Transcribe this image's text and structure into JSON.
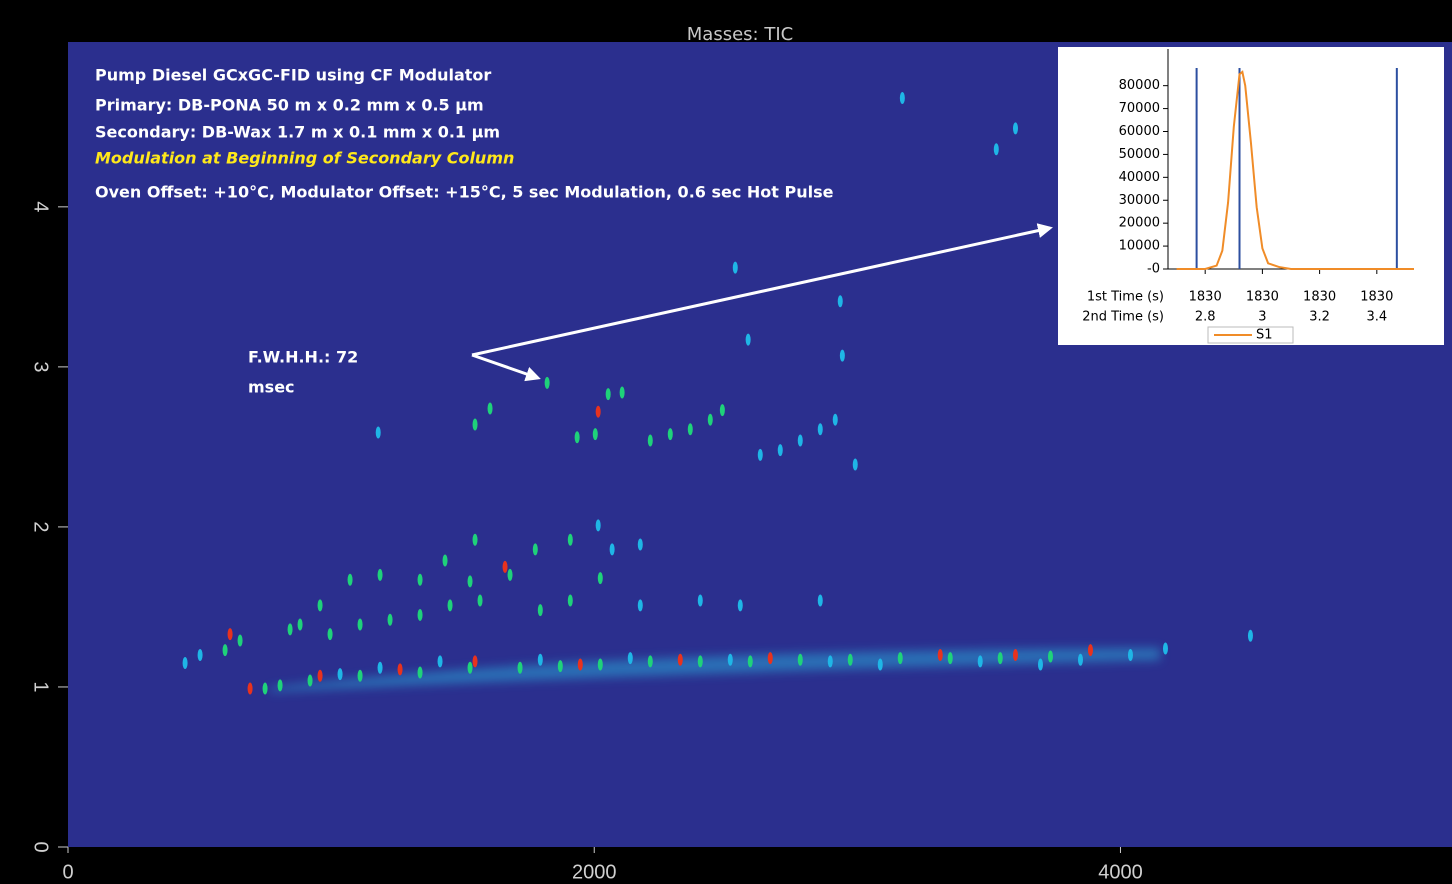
{
  "chart_data": [
    {
      "type": "scatter",
      "title": "Masses: TIC",
      "annotations": [
        {
          "text": "Pump Diesel GCxGC-FID using CF Modulator",
          "color": "#ffffff"
        },
        {
          "text": "Primary: DB-PONA 50 m x 0.2 mm x 0.5 μm",
          "color": "#ffffff"
        },
        {
          "text": "Secondary: DB-Wax 1.7 m x 0.1 mm x 0.1 μm",
          "color": "#ffffff"
        },
        {
          "text": "Modulation at Beginning of Secondary Column",
          "color": "#ffe81a"
        },
        {
          "text": "Oven Offset: +10°C,  Modulator Offset: +15°C, 5 sec Modulation, 0.6 sec Hot Pulse",
          "color": "#ffffff"
        }
      ],
      "peak_label": [
        "F.W.H.H.: 72",
        "msec"
      ],
      "background": "#2b2f8e",
      "xlim": [
        0,
        5260
      ],
      "xticks": [
        0,
        2000,
        4000
      ],
      "ylim": [
        0,
        5.03
      ],
      "yticks": [
        0,
        1,
        2,
        3,
        4
      ],
      "series": [
        {
          "color": "#1fb6e6",
          "x": [
            3171,
            3601,
            3528,
            2935,
            2536,
            2943,
            2585,
            1179,
            2631,
            2707,
            2783,
            2859,
            2916,
            2992,
            2015,
            2175,
            2068,
            445,
            502,
            4494,
            4171,
            2175,
            2403,
            2555,
            2859,
            4038,
            3848,
            3696,
            3467,
            3087,
            2897,
            2517,
            2137,
            1795,
            1414,
            1186,
            1034
          ],
          "y": [
            4.68,
            4.49,
            4.36,
            3.41,
            3.62,
            3.07,
            3.17,
            2.59,
            2.45,
            2.48,
            2.54,
            2.61,
            2.67,
            2.39,
            2.01,
            1.89,
            1.86,
            1.15,
            1.2,
            1.32,
            1.24,
            1.51,
            1.54,
            1.51,
            1.54,
            1.2,
            1.17,
            1.14,
            1.16,
            1.14,
            1.16,
            1.17,
            1.18,
            1.17,
            1.16,
            1.12,
            1.08
          ]
        },
        {
          "color": "#1fd27a",
          "x": [
            1821,
            1604,
            1547,
            2004,
            1935,
            2053,
            2106,
            2213,
            2289,
            2365,
            2441,
            2487,
            1909,
            1776,
            1547,
            1433,
            1680,
            1528,
            1338,
            1186,
            1072,
            958,
            882,
            844,
            654,
            597,
            2023,
            1909,
            1795,
            1566,
            1452,
            1338,
            1224,
            1110,
            996,
            749,
            806,
            920,
            1110,
            1338,
            1528,
            1718,
            1871,
            2023,
            2213,
            2403,
            2593,
            2783,
            2973,
            3163,
            3353,
            3543,
            3734
          ],
          "y": [
            2.9,
            2.74,
            2.64,
            2.58,
            2.56,
            2.83,
            2.84,
            2.54,
            2.58,
            2.61,
            2.67,
            2.73,
            1.92,
            1.86,
            1.92,
            1.79,
            1.7,
            1.66,
            1.67,
            1.7,
            1.67,
            1.51,
            1.39,
            1.36,
            1.29,
            1.23,
            1.68,
            1.54,
            1.48,
            1.54,
            1.51,
            1.45,
            1.42,
            1.39,
            1.33,
            0.99,
            1.01,
            1.04,
            1.07,
            1.09,
            1.12,
            1.12,
            1.13,
            1.14,
            1.16,
            1.16,
            1.16,
            1.17,
            1.17,
            1.18,
            1.18,
            1.18,
            1.19
          ]
        },
        {
          "color": "#e8321e",
          "x": [
            692,
            2015,
            1661,
            1262,
            1547,
            1947,
            2327,
            2669,
            3315,
            3601,
            3886,
            958,
            616
          ],
          "y": [
            0.99,
            2.72,
            1.75,
            1.11,
            1.16,
            1.14,
            1.17,
            1.18,
            1.2,
            1.2,
            1.23,
            1.07,
            1.33
          ]
        }
      ]
    },
    {
      "type": "line",
      "x": [
        2.7,
        2.8,
        2.84,
        2.86,
        2.88,
        2.9,
        2.92,
        2.93,
        2.94,
        2.96,
        2.98,
        3.0,
        3.02,
        3.06,
        3.1,
        3.53
      ],
      "series": [
        {
          "name": "S1",
          "color": "#f08c28",
          "values": [
            0,
            0,
            1500,
            8000,
            29000,
            62000,
            85000,
            86000,
            80000,
            55000,
            27000,
            9000,
            2500,
            800,
            0,
            0
          ]
        }
      ],
      "vlines": [
        2.77,
        2.92,
        3.47
      ],
      "vline_color": "#2c4fa0",
      "xlim": [
        2.67,
        3.53
      ],
      "xticks": [
        2.8,
        3,
        3.2,
        3.4
      ],
      "xticks_primary": [
        "1830",
        "1830",
        "1830",
        "1830"
      ],
      "axis_row_labels": [
        "1st Time (s)",
        "2nd Time (s)"
      ],
      "ylim": [
        0,
        96000
      ],
      "yticks": [
        {
          "value": 0,
          "label": "-0"
        },
        10000,
        20000,
        30000,
        40000,
        50000,
        60000,
        70000,
        80000
      ]
    }
  ]
}
